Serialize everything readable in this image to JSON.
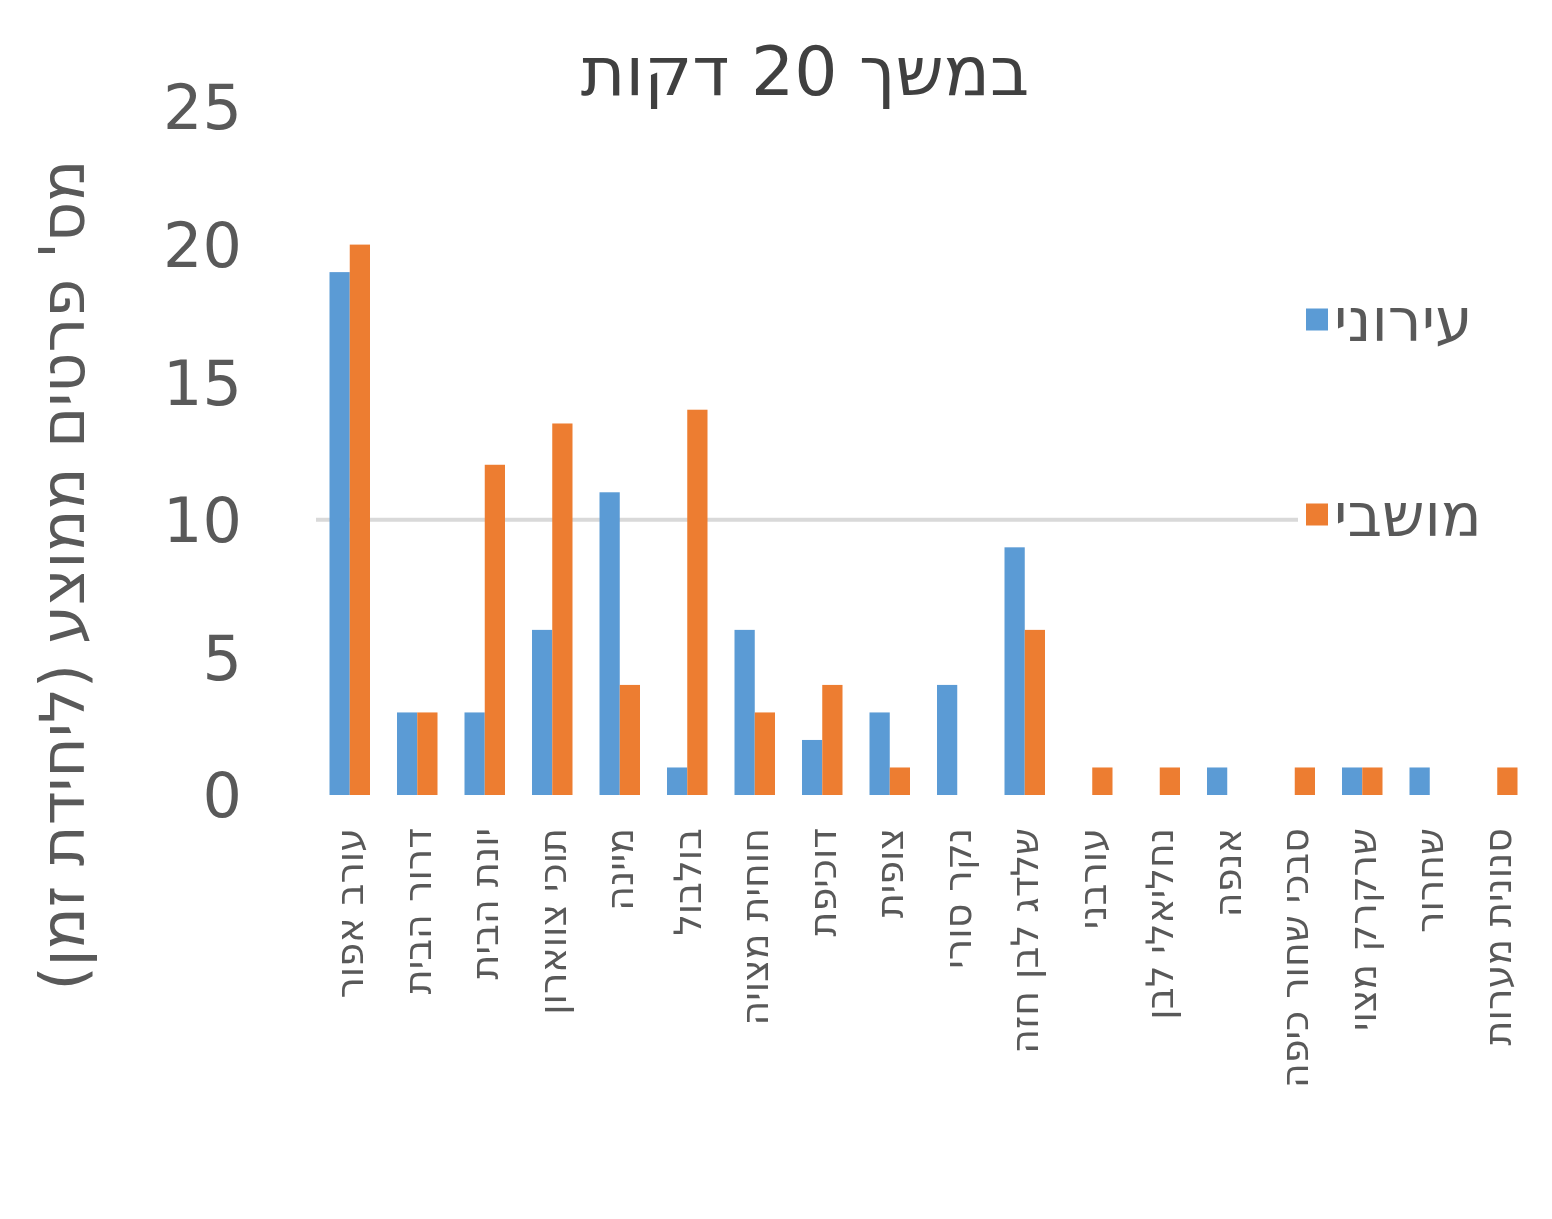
{
  "chart_data": {
    "type": "bar",
    "title": "במשך 20 דקות",
    "ylabel": "מס' פרטים ממוצע (ליחידת זמן)",
    "categories": [
      "עורב אפור",
      "דרור הבית",
      "יונת הבית",
      "תוכי צווארון",
      "מיינה",
      "בולבול",
      "חוחית מצויה",
      "דוכיפת",
      "צופית",
      "נקר סורי",
      "שלדג לבן חזה",
      "עורבני",
      "נחליאלי לבן",
      "אנפה",
      "סבכי שחור כיפה",
      "שרקרק מצוי",
      "שחרור",
      "סנונית מערות"
    ],
    "series": [
      {
        "name": "עירוני",
        "color": "#5b9bd5",
        "values": [
          19,
          3,
          3,
          6,
          11,
          1,
          6,
          2,
          3,
          4,
          9,
          0,
          0,
          1,
          0,
          1,
          1,
          0
        ]
      },
      {
        "name": "מושבי",
        "color": "#ed7d31",
        "values": [
          20,
          3,
          12,
          13.5,
          4,
          14,
          3,
          4,
          1,
          0,
          6,
          1,
          1,
          0,
          1,
          1,
          0,
          1
        ]
      }
    ],
    "ylim": [
      0,
      25
    ],
    "yticks": [
      0,
      5,
      10,
      15,
      20,
      25
    ],
    "ref_lines": [
      {
        "axis": "y",
        "value": 10,
        "color": "#d9d9d9"
      }
    ],
    "legend": "right"
  }
}
